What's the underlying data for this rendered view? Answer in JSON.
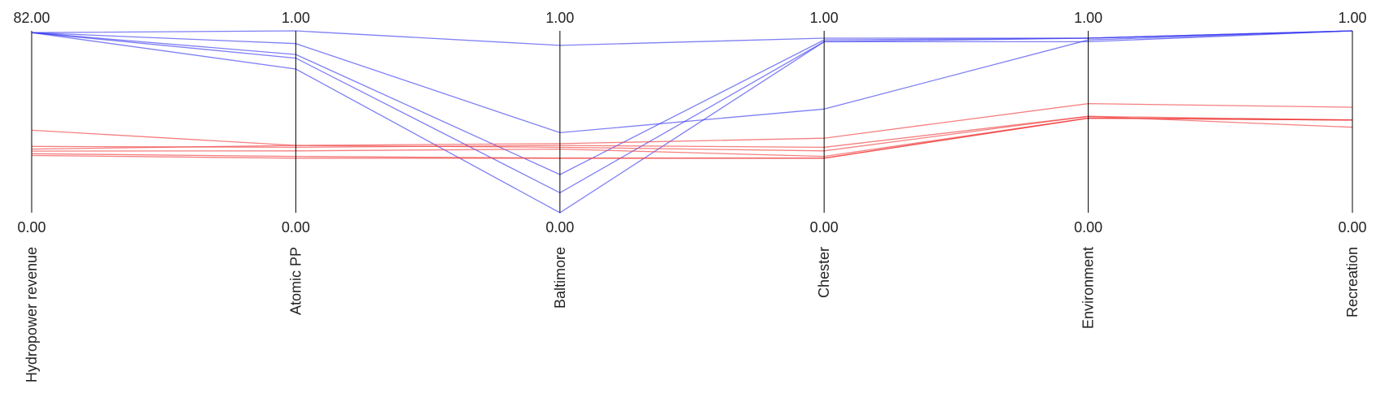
{
  "chart_data": {
    "type": "parallel_coordinates",
    "axes": [
      {
        "name": "Hydropower revenue",
        "max_label": "82.00",
        "min_label": "0.00",
        "range": [
          0,
          82
        ]
      },
      {
        "name": "Atomic PP",
        "max_label": "1.00",
        "min_label": "0.00",
        "range": [
          0,
          1
        ]
      },
      {
        "name": "Baltimore",
        "max_label": "1.00",
        "min_label": "0.00",
        "range": [
          0,
          1
        ]
      },
      {
        "name": "Chester",
        "max_label": "1.00",
        "min_label": "0.00",
        "range": [
          0,
          1
        ]
      },
      {
        "name": "Environment",
        "max_label": "1.00",
        "min_label": "0.00",
        "range": [
          0,
          1
        ]
      },
      {
        "name": "Recreation",
        "max_label": "1.00",
        "min_label": "0.00",
        "range": [
          0,
          1
        ]
      }
    ],
    "series": [
      {
        "color": "#3a3af0",
        "values": [
          81.2,
          1.0,
          0.92,
          0.96,
          0.96,
          1.0
        ]
      },
      {
        "color": "#3a3af0",
        "values": [
          81.2,
          0.93,
          0.44,
          0.57,
          0.95,
          1.0
        ]
      },
      {
        "color": "#3a3af0",
        "values": [
          81.2,
          0.87,
          0.21,
          0.95,
          0.96,
          1.0
        ]
      },
      {
        "color": "#3a3af0",
        "values": [
          81.2,
          0.85,
          0.11,
          0.94,
          0.96,
          1.0
        ]
      },
      {
        "color": "#3a3af0",
        "values": [
          81.2,
          0.79,
          0.0,
          0.94,
          0.94,
          1.0
        ]
      },
      {
        "color": "#f03a3a",
        "values": [
          37.2,
          0.37,
          0.38,
          0.41,
          0.6,
          0.58
        ]
      },
      {
        "color": "#f03a3a",
        "values": [
          29.9,
          0.36,
          0.37,
          0.36,
          0.53,
          0.47
        ]
      },
      {
        "color": "#f03a3a",
        "values": [
          28.7,
          0.37,
          0.36,
          0.34,
          0.53,
          0.51
        ]
      },
      {
        "color": "#f03a3a",
        "values": [
          27.8,
          0.34,
          0.35,
          0.31,
          0.52,
          0.51
        ]
      },
      {
        "color": "#f03a3a",
        "values": [
          26.6,
          0.31,
          0.3,
          0.3,
          0.52,
          0.51
        ]
      },
      {
        "color": "#f03a3a",
        "values": [
          25.8,
          0.3,
          0.3,
          0.3,
          0.52,
          0.51
        ]
      }
    ]
  }
}
